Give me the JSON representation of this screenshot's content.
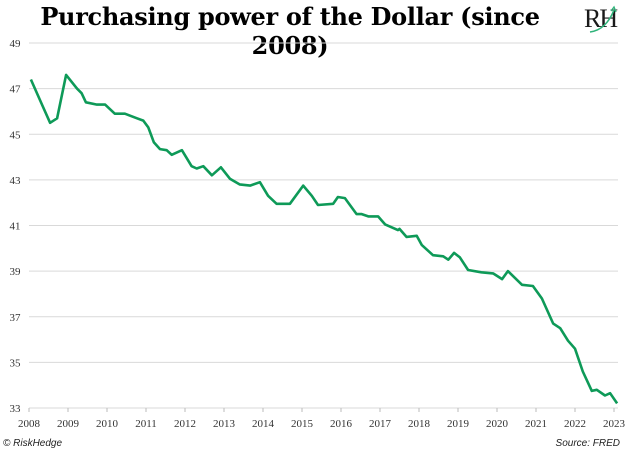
{
  "title": "Purchasing power of the Dollar (since 2008)",
  "logo_text": "RH",
  "footer": {
    "copyright": "© RiskHedge",
    "source": "Source: FRED"
  },
  "colors": {
    "line": "#0e9a58",
    "grid": "#d9d9d9"
  },
  "chart_data": {
    "type": "line",
    "title": "Purchasing power of the Dollar (since 2008)",
    "xlabel": "",
    "ylabel": "",
    "xlim": [
      2008,
      2023
    ],
    "ylim": [
      33,
      49
    ],
    "grid": true,
    "x_ticks": [
      "2008",
      "2009",
      "2010",
      "2011",
      "2012",
      "2013",
      "2014",
      "2015",
      "2016",
      "2017",
      "2018",
      "2019",
      "2020",
      "2021",
      "2022",
      "2023"
    ],
    "y_ticks": [
      "33",
      "35",
      "37",
      "39",
      "41",
      "43",
      "45",
      "47",
      "49"
    ],
    "series": [
      {
        "name": "Purchasing power",
        "x": [
          2008.05,
          2008.36,
          2008.54,
          2008.72,
          2008.95,
          2009.23,
          2009.35,
          2009.46,
          2009.74,
          2009.95,
          2010.2,
          2010.46,
          2010.77,
          2010.93,
          2011.06,
          2011.2,
          2011.36,
          2011.53,
          2011.66,
          2011.92,
          2012.17,
          2012.3,
          2012.47,
          2012.69,
          2012.92,
          2013.15,
          2013.4,
          2013.67,
          2013.92,
          2014.13,
          2014.35,
          2014.69,
          2015.03,
          2015.25,
          2015.41,
          2015.8,
          2015.92,
          2016.1,
          2016.4,
          2016.53,
          2016.7,
          2016.95,
          2017.13,
          2017.46,
          2017.5,
          2017.68,
          2017.94,
          2018.07,
          2018.36,
          2018.62,
          2018.75,
          2018.9,
          2019.05,
          2019.26,
          2019.6,
          2019.9,
          2020.13,
          2020.28,
          2020.64,
          2020.92,
          2021.15,
          2021.44,
          2021.62,
          2021.82,
          2022.0,
          2022.2,
          2022.43,
          2022.56,
          2022.77,
          2022.9,
          2023.08
        ],
        "values": [
          47.4,
          46.2,
          45.5,
          45.7,
          47.6,
          47.0,
          46.8,
          46.4,
          46.3,
          46.3,
          45.9,
          45.9,
          45.7,
          45.6,
          45.3,
          44.65,
          44.35,
          44.3,
          44.1,
          44.3,
          43.6,
          43.5,
          43.6,
          43.2,
          43.55,
          43.05,
          42.8,
          42.75,
          42.9,
          42.3,
          41.95,
          41.95,
          42.75,
          42.3,
          41.9,
          41.95,
          42.25,
          42.2,
          41.5,
          41.5,
          41.4,
          41.4,
          41.05,
          40.8,
          40.85,
          40.5,
          40.55,
          40.15,
          39.7,
          39.65,
          39.5,
          39.8,
          39.6,
          39.05,
          38.95,
          38.9,
          38.65,
          39.0,
          38.4,
          38.35,
          37.8,
          36.7,
          36.5,
          35.95,
          35.6,
          34.6,
          33.75,
          33.8,
          33.55,
          33.65,
          33.2
        ]
      }
    ]
  }
}
